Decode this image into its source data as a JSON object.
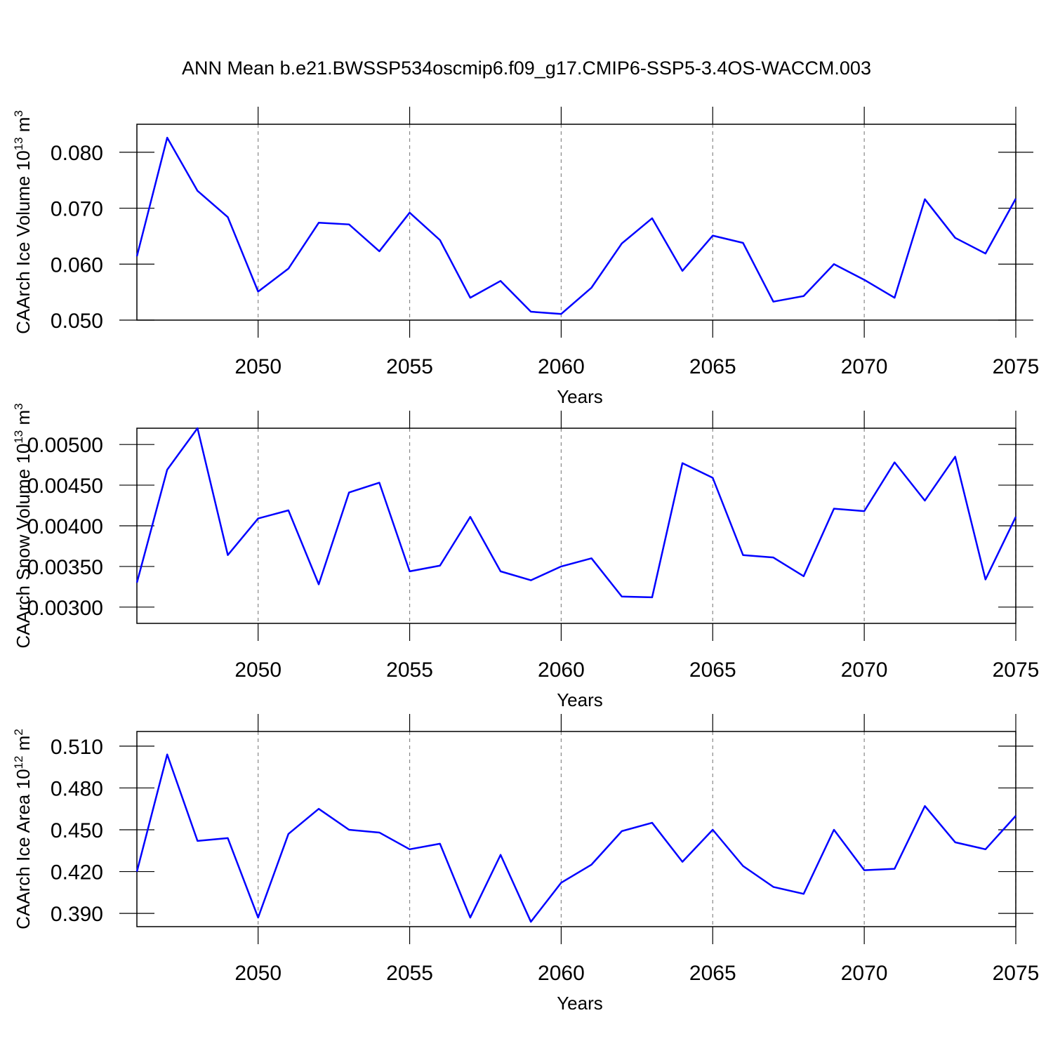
{
  "title": "ANN Mean b.e21.BWSSP534oscmip6.f09_g17.CMIP6-SSP5-3.4OS-WACCM.003",
  "chart_data": [
    {
      "type": "line",
      "xlabel": "Years",
      "ylabel": {
        "text": "CAArch Ice Volume 10",
        "exp": "13",
        "unit": " m",
        "unit_exp": "3"
      },
      "x": [
        2046,
        2047,
        2048,
        2049,
        2050,
        2051,
        2052,
        2053,
        2054,
        2055,
        2056,
        2057,
        2058,
        2059,
        2060,
        2061,
        2062,
        2063,
        2064,
        2065,
        2066,
        2067,
        2068,
        2069,
        2070,
        2071,
        2072,
        2073,
        2074,
        2075
      ],
      "series": [
        {
          "color": "#0000ff",
          "values": [
            0.0614,
            0.0826,
            0.0731,
            0.0684,
            0.0551,
            0.0592,
            0.0674,
            0.0671,
            0.0623,
            0.0692,
            0.0643,
            0.054,
            0.057,
            0.0515,
            0.0511,
            0.0558,
            0.0637,
            0.0682,
            0.0588,
            0.0651,
            0.0638,
            0.0533,
            0.0543,
            0.06,
            0.0572,
            0.054,
            0.0716,
            0.0647,
            0.0619,
            0.0717
          ]
        }
      ],
      "xlim": [
        2046,
        2075
      ],
      "xticks": [
        2050,
        2055,
        2060,
        2065,
        2070,
        2075
      ],
      "ylim": [
        0.05,
        0.085
      ],
      "yticks": [
        {
          "value": 0.05,
          "label": "0.050"
        },
        {
          "value": 0.06,
          "label": "0.060"
        },
        {
          "value": 0.07,
          "label": "0.070"
        },
        {
          "value": 0.08,
          "label": "0.080"
        }
      ],
      "grid": "x"
    },
    {
      "type": "line",
      "xlabel": "Years",
      "ylabel": {
        "text": "CAArch Snow Volume 10",
        "exp": "13",
        "unit": " m",
        "unit_exp": "3"
      },
      "x": [
        2046,
        2047,
        2048,
        2049,
        2050,
        2051,
        2052,
        2053,
        2054,
        2055,
        2056,
        2057,
        2058,
        2059,
        2060,
        2061,
        2062,
        2063,
        2064,
        2065,
        2066,
        2067,
        2068,
        2069,
        2070,
        2071,
        2072,
        2073,
        2074,
        2075
      ],
      "series": [
        {
          "color": "#0000ff",
          "values": [
            0.0033,
            0.00469,
            0.0052,
            0.00364,
            0.00409,
            0.00419,
            0.00328,
            0.00441,
            0.00453,
            0.00344,
            0.00351,
            0.00411,
            0.00344,
            0.00333,
            0.0035,
            0.0036,
            0.00313,
            0.00312,
            0.00477,
            0.00459,
            0.00364,
            0.00361,
            0.00338,
            0.00421,
            0.00418,
            0.00478,
            0.00431,
            0.00485,
            0.00334,
            0.00411
          ]
        }
      ],
      "xlim": [
        2046,
        2075
      ],
      "xticks": [
        2050,
        2055,
        2060,
        2065,
        2070,
        2075
      ],
      "ylim": [
        0.0028,
        0.0052
      ],
      "yticks": [
        {
          "value": 0.003,
          "label": "0.00300"
        },
        {
          "value": 0.0035,
          "label": "0.00350"
        },
        {
          "value": 0.004,
          "label": "0.00400"
        },
        {
          "value": 0.0045,
          "label": "0.00450"
        },
        {
          "value": 0.005,
          "label": "0.00500"
        }
      ],
      "grid": "x"
    },
    {
      "type": "line",
      "xlabel": "Years",
      "ylabel": {
        "text": "CAArch Ice Area 10",
        "exp": "12",
        "unit": " m",
        "unit_exp": "2"
      },
      "x": [
        2046,
        2047,
        2048,
        2049,
        2050,
        2051,
        2052,
        2053,
        2054,
        2055,
        2056,
        2057,
        2058,
        2059,
        2060,
        2061,
        2062,
        2063,
        2064,
        2065,
        2066,
        2067,
        2068,
        2069,
        2070,
        2071,
        2072,
        2073,
        2074,
        2075
      ],
      "series": [
        {
          "color": "#0000ff",
          "values": [
            0.42,
            0.504,
            0.442,
            0.444,
            0.387,
            0.447,
            0.465,
            0.45,
            0.448,
            0.436,
            0.44,
            0.387,
            0.432,
            0.384,
            0.412,
            0.425,
            0.449,
            0.455,
            0.427,
            0.45,
            0.424,
            0.409,
            0.404,
            0.45,
            0.421,
            0.422,
            0.467,
            0.441,
            0.436,
            0.46
          ]
        }
      ],
      "xlim": [
        2046,
        2075
      ],
      "xticks": [
        2050,
        2055,
        2060,
        2065,
        2070,
        2075
      ],
      "ylim": [
        0.3805,
        0.5205
      ],
      "yticks": [
        {
          "value": 0.39,
          "label": "0.390"
        },
        {
          "value": 0.42,
          "label": "0.420"
        },
        {
          "value": 0.45,
          "label": "0.450"
        },
        {
          "value": 0.48,
          "label": "0.480"
        },
        {
          "value": 0.51,
          "label": "0.510"
        }
      ],
      "grid": "x"
    }
  ]
}
